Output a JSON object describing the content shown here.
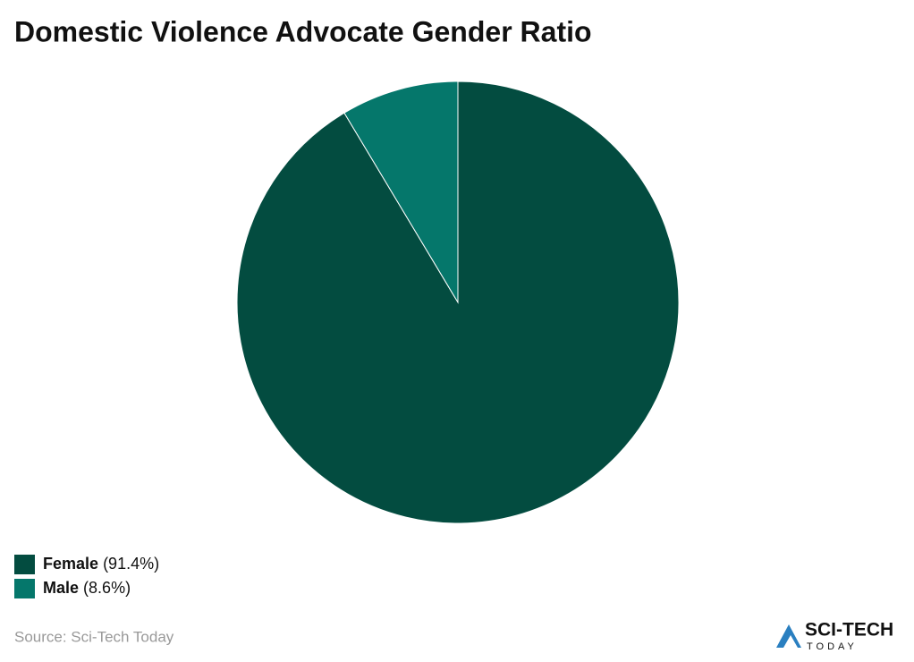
{
  "chart_data": {
    "type": "pie",
    "title": "Domestic Violence Advocate Gender Ratio",
    "categories": [
      "Female",
      "Male"
    ],
    "values": [
      91.4,
      8.6
    ],
    "value_labels": [
      "(91.4%)",
      "(8.6%)"
    ],
    "colors": [
      "#034c40",
      "#05776b"
    ],
    "legend": "bottom-left",
    "source": "Source: Sci-Tech Today",
    "logo": {
      "name": "SCI-TECH",
      "tagline": "TODAY"
    }
  }
}
